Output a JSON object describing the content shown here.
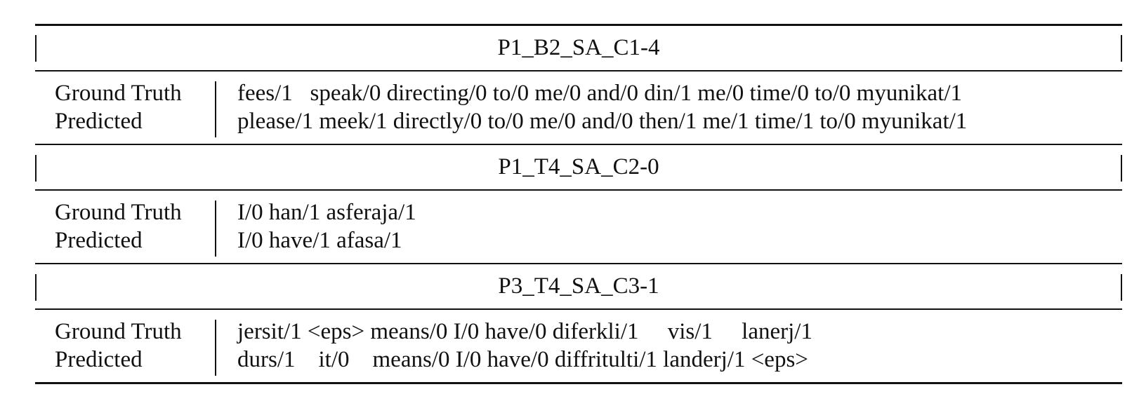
{
  "sections": [
    {
      "title": "P1_B2_SA_C1-4",
      "rows": [
        {
          "label": "Ground Truth",
          "tokens": "fees/1   speak/0 directing/0 to/0 me/0 and/0 din/1 me/0 time/0 to/0 myunikat/1"
        },
        {
          "label": "Predicted",
          "tokens": "please/1 meek/1 directly/0 to/0 me/0 and/0 then/1 me/1 time/1 to/0 myunikat/1"
        }
      ]
    },
    {
      "title": "P1_T4_SA_C2-0",
      "rows": [
        {
          "label": "Ground Truth",
          "tokens": "I/0 han/1 asferaja/1"
        },
        {
          "label": "Predicted",
          "tokens": "I/0 have/1 afasa/1"
        }
      ]
    },
    {
      "title": "P3_T4_SA_C3-1",
      "rows": [
        {
          "label": "Ground Truth",
          "tokens": "jersit/1 <eps> means/0 I/0 have/0 diferkli/1     vis/1     lanerj/1"
        },
        {
          "label": "Predicted",
          "tokens": "durs/1    it/0    means/0 I/0 have/0 diffritulti/1 landerj/1 <eps>"
        }
      ]
    }
  ]
}
